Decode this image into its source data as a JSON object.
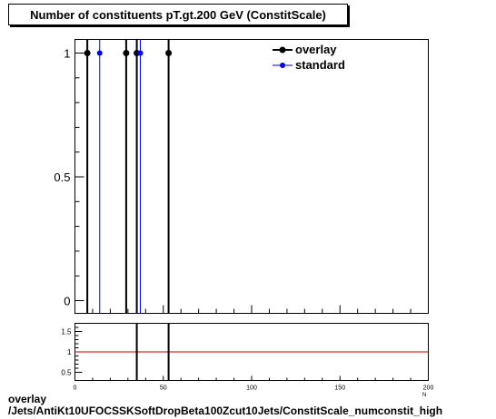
{
  "title": "Number of constituents pT.gt.200 GeV (ConstitScale)",
  "footer_line1": "overlay",
  "footer_line2": "/Jets/AntiKt10UFOCSSKSoftDropBeta100Zcut10Jets/ConstitScale_numconstit_high",
  "x_axis_cut_label": "N",
  "colors": {
    "overlay": "#000000",
    "standard": "#0000ff",
    "ratio_line": "#cc0000"
  },
  "chart_data": [
    {
      "type": "scatter",
      "title": "Number of constituents pT.gt.200 GeV (ConstitScale)",
      "xlabel": "",
      "ylabel": "",
      "xlim": [
        0,
        200
      ],
      "ylim": [
        0,
        1.05
      ],
      "yticks": [
        0,
        0.5,
        1
      ],
      "ytick_labels": [
        "0",
        "0.5",
        "1"
      ],
      "grid": false,
      "legend_position": "top-right",
      "series": [
        {
          "name": "overlay",
          "color": "#000000",
          "x": [
            7,
            29,
            35,
            53
          ],
          "y": [
            1,
            1,
            1,
            1
          ]
        },
        {
          "name": "standard",
          "color": "#0000ff",
          "x": [
            14,
            37
          ],
          "y": [
            1,
            1
          ]
        }
      ]
    },
    {
      "type": "scatter",
      "xlim": [
        0,
        200
      ],
      "ylim": [
        0.3,
        1.7
      ],
      "xticks": [
        0,
        50,
        100,
        150,
        200
      ],
      "xtick_labels": [
        "0",
        "50",
        "100",
        "150",
        "200"
      ],
      "yticks": [
        0.5,
        1,
        1.5
      ],
      "ytick_labels": [
        "0.5",
        "1",
        "1.5"
      ],
      "reference_line": 1,
      "series": [
        {
          "name": "ratio",
          "x": [
            35,
            53
          ],
          "y": [
            1,
            1
          ]
        }
      ]
    }
  ]
}
